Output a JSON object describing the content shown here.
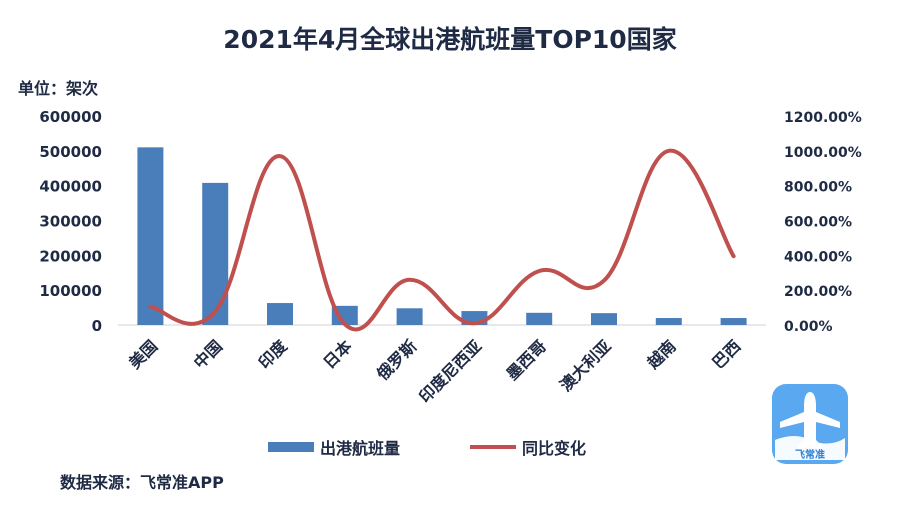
{
  "chart_data": {
    "type": "bar+line",
    "title": "2021年4月全球出港航班量TOP10国家",
    "unit_label": "单位：架次",
    "categories": [
      "美国",
      "中国",
      "印度",
      "日本",
      "俄罗斯",
      "印度尼西亚",
      "墨西哥",
      "澳大利亚",
      "越南",
      "巴西"
    ],
    "series": [
      {
        "name": "出港航班量",
        "type": "bar",
        "axis": "left",
        "color": "#4a7ebb",
        "values": [
          510000,
          408000,
          63000,
          55000,
          48000,
          40000,
          35000,
          34000,
          20000,
          20000
        ]
      },
      {
        "name": "同比变化",
        "type": "line",
        "axis": "right",
        "color": "#c0504d",
        "values": [
          1.05,
          0.78,
          9.7,
          0.05,
          2.6,
          0.1,
          3.1,
          2.55,
          10.0,
          3.95
        ]
      }
    ],
    "y_left": {
      "min": 0,
      "max": 600000,
      "ticks": [
        "0",
        "100000",
        "200000",
        "300000",
        "400000",
        "500000",
        "600000"
      ]
    },
    "y_right": {
      "min": 0,
      "max": 12,
      "ticks": [
        "0.00%",
        "200.00%",
        "400.00%",
        "600.00%",
        "800.00%",
        "1000.00%",
        "1200.00%"
      ]
    },
    "grid": false,
    "legend_position": "bottom"
  },
  "source_text": "数据来源：飞常准APP",
  "logo": {
    "icon": "airplane-icon",
    "text": "飞常准",
    "bg_color": "#5aa8f0"
  }
}
